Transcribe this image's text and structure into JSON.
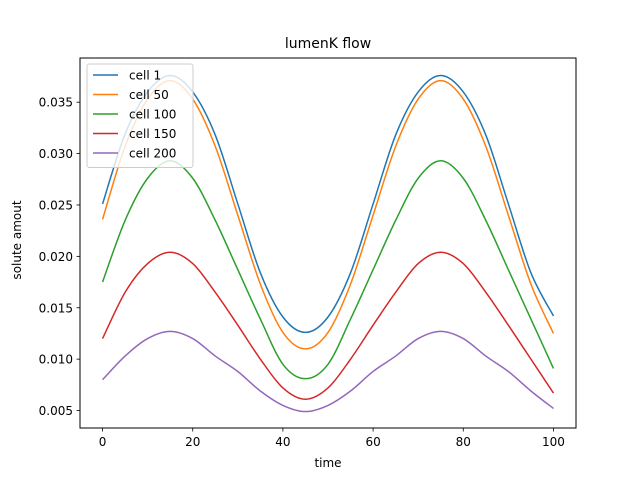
{
  "chart_data": {
    "type": "line",
    "title": "lumenK flow",
    "xlabel": "time",
    "ylabel": "solute amout",
    "xlim": [
      -5,
      105
    ],
    "ylim": [
      0.0033,
      0.0393
    ],
    "xticks": [
      0,
      20,
      40,
      60,
      80,
      100
    ],
    "xtick_labels": [
      "0",
      "20",
      "40",
      "60",
      "80",
      "100"
    ],
    "yticks": [
      0.005,
      0.01,
      0.015,
      0.02,
      0.025,
      0.03,
      0.035
    ],
    "ytick_labels": [
      "0.005",
      "0.010",
      "0.015",
      "0.020",
      "0.025",
      "0.030",
      "0.035"
    ],
    "grid": false,
    "legend_position": "top-left",
    "x": [
      0,
      5,
      10,
      15,
      20,
      25,
      30,
      35,
      40,
      45,
      50,
      55,
      60,
      65,
      70,
      75,
      80,
      85,
      90,
      95,
      100
    ],
    "series": [
      {
        "name": "cell 1",
        "color": "#1f77b4",
        "values": [
          0.0251,
          0.0319,
          0.036,
          0.0376,
          0.036,
          0.0318,
          0.0251,
          0.0184,
          0.0141,
          0.0126,
          0.0141,
          0.0184,
          0.0251,
          0.0318,
          0.036,
          0.0376,
          0.036,
          0.0318,
          0.0251,
          0.0184,
          0.0142
        ]
      },
      {
        "name": "cell 50",
        "color": "#ff7f0e",
        "values": [
          0.0236,
          0.0307,
          0.0353,
          0.0371,
          0.0353,
          0.0307,
          0.024,
          0.0173,
          0.0126,
          0.011,
          0.0126,
          0.0173,
          0.024,
          0.0307,
          0.0353,
          0.0371,
          0.0353,
          0.0307,
          0.024,
          0.0173,
          0.0125
        ]
      },
      {
        "name": "cell 100",
        "color": "#2ca02c",
        "values": [
          0.0175,
          0.0235,
          0.0276,
          0.0293,
          0.0276,
          0.0235,
          0.0187,
          0.0139,
          0.0095,
          0.0081,
          0.0095,
          0.0139,
          0.0187,
          0.0235,
          0.0276,
          0.0293,
          0.0276,
          0.0235,
          0.0187,
          0.0139,
          0.0091
        ]
      },
      {
        "name": "cell 150",
        "color": "#d62728",
        "values": [
          0.012,
          0.0165,
          0.0193,
          0.0204,
          0.0193,
          0.0165,
          0.0133,
          0.01,
          0.0072,
          0.0061,
          0.0072,
          0.01,
          0.0133,
          0.0165,
          0.0193,
          0.0204,
          0.0193,
          0.0165,
          0.0133,
          0.01,
          0.0067
        ]
      },
      {
        "name": "cell 200",
        "color": "#9467bd",
        "values": [
          0.008,
          0.0103,
          0.012,
          0.0127,
          0.012,
          0.0103,
          0.0088,
          0.0069,
          0.0055,
          0.0049,
          0.0055,
          0.0069,
          0.0088,
          0.0103,
          0.012,
          0.0127,
          0.012,
          0.0103,
          0.0088,
          0.0069,
          0.0052
        ]
      }
    ]
  }
}
